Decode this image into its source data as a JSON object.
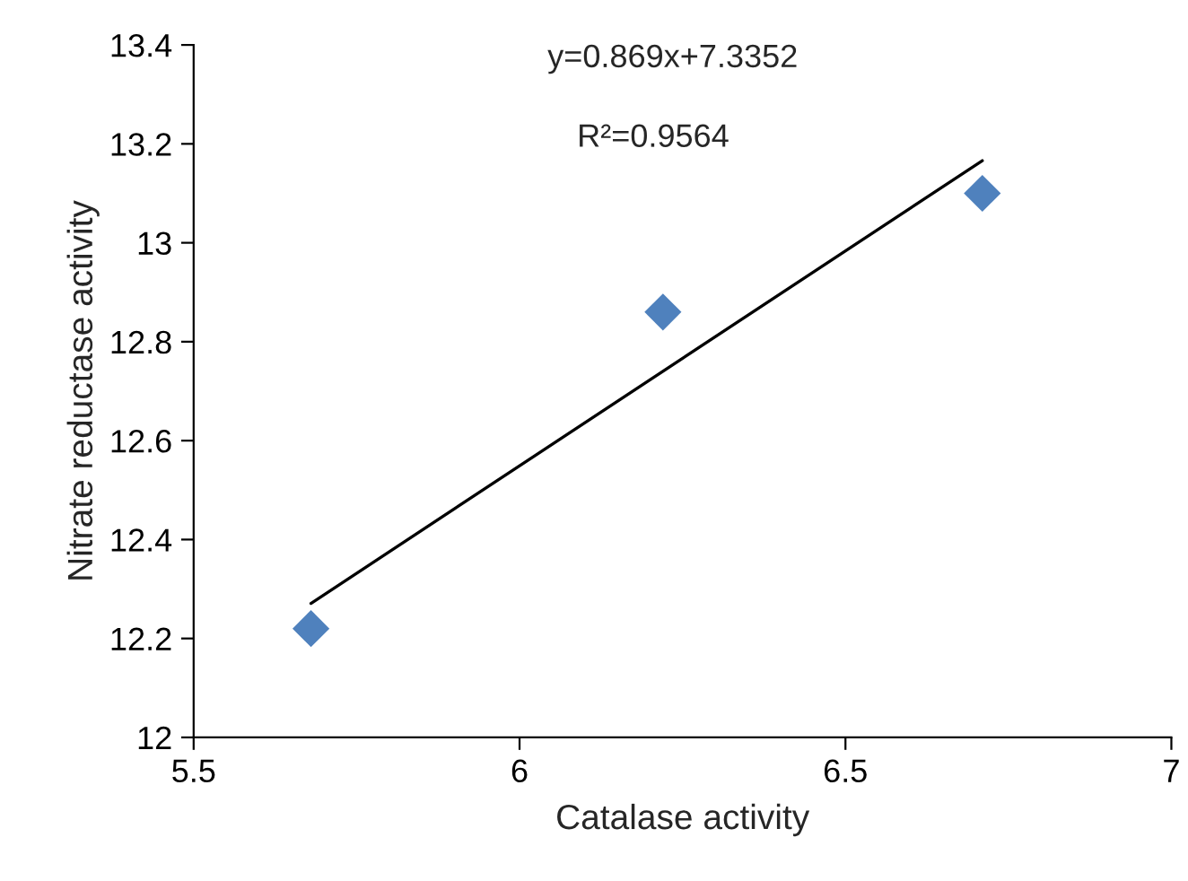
{
  "chart_data": {
    "type": "scatter",
    "xlabel": "Catalase activity",
    "ylabel": "Nitrate reductase activity",
    "series": [
      {
        "color": "#4f81bd",
        "marker": "diamond",
        "x": [
          5.68,
          6.22,
          6.71
        ],
        "values": [
          12.22,
          12.86,
          13.1
        ]
      },
      {
        "type": "line",
        "color": "#000000",
        "marker": "none",
        "line_style": "solid",
        "x": [
          5.68,
          6.71
        ],
        "values": [
          12.271,
          13.166
        ]
      }
    ],
    "annotations": [
      "y=0.869x+7.3352",
      "R²=0.9564"
    ],
    "xlim": [
      5.5,
      7
    ],
    "xticks": [
      5.5,
      6,
      6.5,
      7
    ],
    "ylim": [
      12,
      13.4
    ],
    "yticks": [
      12,
      12.2,
      12.4,
      12.6,
      12.8,
      13,
      13.2,
      13.4
    ],
    "grid": false,
    "legend": false
  }
}
